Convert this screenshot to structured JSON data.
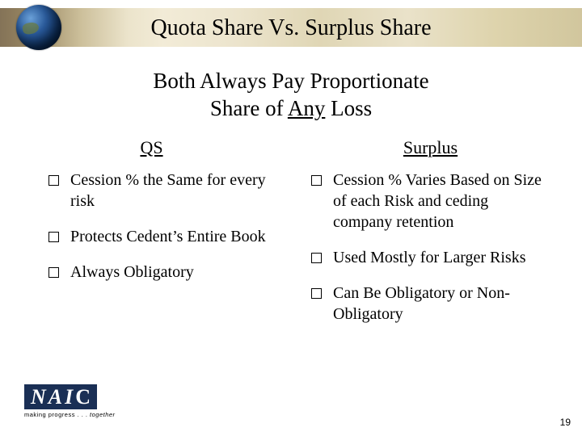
{
  "title": "Quota Share Vs. Surplus Share",
  "subtitle_line1": "Both Always Pay Proportionate",
  "subtitle_line2_a": "Share of ",
  "subtitle_line2_u": "Any",
  "subtitle_line2_b": " Loss",
  "columns": {
    "left": {
      "head": "QS",
      "items": [
        "Cession % the Same for every risk",
        "Protects Cedent’s Entire Book",
        "Always Obligatory"
      ]
    },
    "right": {
      "head": "Surplus",
      "items": [
        "Cession % Varies Based on Size of each Risk and ceding company retention",
        "Used Mostly for Larger Risks",
        "Can Be Obligatory or Non-Obligatory"
      ]
    }
  },
  "logo": {
    "text_italic": "NAI",
    "text_c": "C",
    "tag_a": "making progress . . . ",
    "tag_b": "together"
  },
  "page_number": "19",
  "colors": {
    "navy": "#1a2f55",
    "background": "#ffffff"
  }
}
